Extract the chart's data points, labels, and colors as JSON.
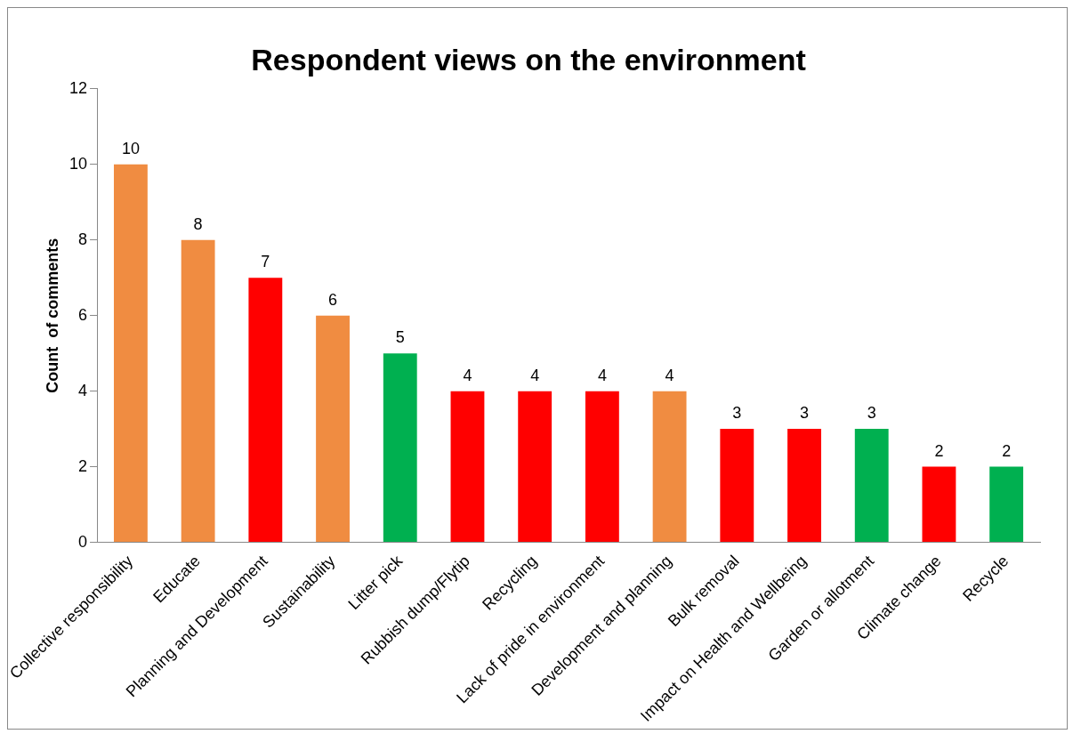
{
  "chart_data": {
    "type": "bar",
    "title": "Respondent views on the environment",
    "ylabel": "Count  of comments",
    "categories": [
      "Collective responsibility",
      "Educate",
      "Planning and Development",
      "Sustainability",
      "Litter pick",
      "Rubbish dump/Flytip",
      "Recycling",
      "Lack of pride in environment",
      "Development and planning",
      "Bulk removal",
      "Impact on Health and Wellbeing",
      "Garden or allotment",
      "Climate change",
      "Recycle"
    ],
    "values": [
      10,
      8,
      7,
      6,
      5,
      4,
      4,
      4,
      4,
      3,
      3,
      3,
      2,
      2
    ],
    "colors": [
      "#f08c41",
      "#f08c41",
      "#ff0000",
      "#f08c41",
      "#00b050",
      "#ff0000",
      "#ff0000",
      "#ff0000",
      "#f08c41",
      "#ff0000",
      "#ff0000",
      "#00b050",
      "#ff0000",
      "#00b050"
    ],
    "ylim": [
      0,
      12
    ],
    "yticks": [
      0,
      2,
      4,
      6,
      8,
      10,
      12
    ],
    "grid": false,
    "legend": false,
    "data_labels": true
  }
}
